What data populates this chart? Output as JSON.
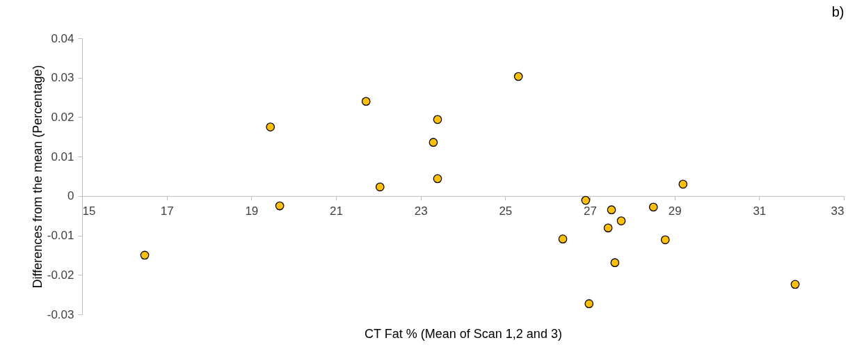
{
  "chart_data": {
    "type": "scatter",
    "title": "b)",
    "xlabel": "CT Fat %  (Mean of Scan 1,2 and 3)",
    "ylabel": "Differences from the mean (Percentage)",
    "x": [
      16.48,
      19.45,
      19.67,
      21.71,
      22.04,
      23.3,
      23.4,
      23.4,
      25.31,
      26.36,
      26.9,
      26.98,
      27.43,
      27.51,
      27.59,
      27.74,
      28.5,
      28.78,
      29.2,
      31.85
    ],
    "series": [
      {
        "color": "#ffc000",
        "values": [
          -0.015,
          0.0175,
          -0.0025,
          0.024,
          0.0023,
          0.0136,
          0.0194,
          0.0044,
          0.0303,
          -0.0109,
          -0.0011,
          -0.0273,
          -0.0081,
          -0.0035,
          -0.0169,
          -0.0063,
          -0.0028,
          -0.0111,
          0.003,
          -0.0224
        ]
      }
    ],
    "xlim": [
      15,
      33
    ],
    "xticks": [
      15,
      17,
      19,
      21,
      23,
      25,
      27,
      29,
      31,
      33
    ],
    "ylim": [
      -0.03,
      0.04
    ],
    "yticks": [
      -0.03,
      -0.02,
      -0.01,
      0,
      0.01,
      0.02,
      0.03,
      0.04
    ],
    "grid": false,
    "legend": false,
    "marker": "circle"
  }
}
